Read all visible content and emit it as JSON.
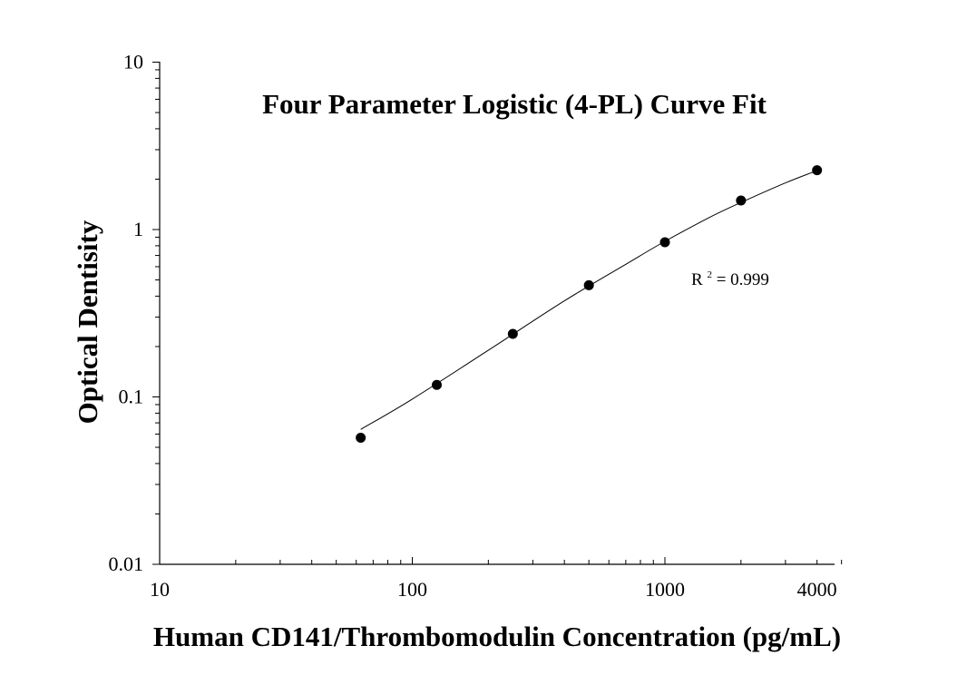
{
  "chart_data": {
    "type": "scatter",
    "title": "Four Parameter Logistic (4-PL) Curve Fit",
    "xlabel": "Human CD141/Thrombomodulin Concentration (pg/mL)",
    "ylabel": "Optical Dentisity",
    "x_scale": "log",
    "y_scale": "log",
    "xlim": [
      10,
      5000
    ],
    "ylim": [
      0.01,
      10
    ],
    "x_tick_labels": [
      {
        "value": 10,
        "label": "10"
      },
      {
        "value": 100,
        "label": "100"
      },
      {
        "value": 1000,
        "label": "1000"
      },
      {
        "value": 4000,
        "label": "4000"
      }
    ],
    "y_tick_labels": [
      {
        "value": 10,
        "label": "10"
      },
      {
        "value": 1,
        "label": "1"
      },
      {
        "value": 0.1,
        "label": "0.1"
      },
      {
        "value": 0.01,
        "label": "0.01"
      }
    ],
    "series": [
      {
        "x": [
          62.5,
          125,
          250,
          500,
          1000,
          2000,
          4000
        ],
        "y": [
          0.057,
          0.118,
          0.238,
          0.465,
          0.84,
          1.49,
          2.26
        ]
      }
    ],
    "fit_curve": {
      "x": [
        62.5,
        100,
        200,
        400,
        700,
        1000,
        1500,
        2000,
        3000,
        4000
      ],
      "y": [
        0.064,
        0.097,
        0.19,
        0.375,
        0.62,
        0.85,
        1.18,
        1.45,
        1.9,
        2.25
      ]
    },
    "annotation": {
      "base": "R",
      "superscript": "2",
      "rest": "= 0.999"
    },
    "grid": false
  }
}
